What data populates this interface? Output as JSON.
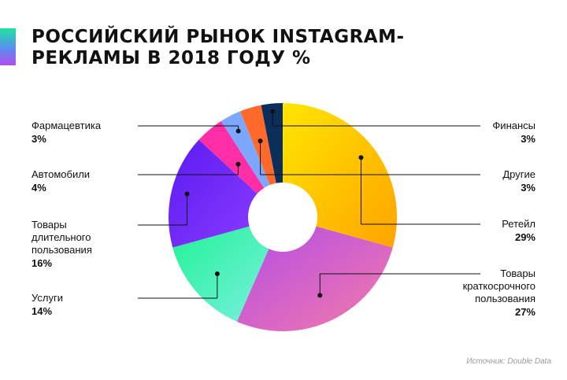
{
  "title_lines": [
    "РОССИЙСКИЙ РЫНОК INSTAGRAM-",
    "РЕКЛАМЫ В 2018 ГОДУ %"
  ],
  "source": "Источник: Double Data",
  "chart_data": {
    "type": "pie",
    "donut": true,
    "title": "РОССИЙСКИЙ РЫНОК INSTAGRAM-РЕКЛАМЫ В 2018 ГОДУ %",
    "slices": [
      {
        "label": "Ретейл",
        "value": 29,
        "display": "29%",
        "colors": [
          "#ffe600",
          "#ffa300"
        ]
      },
      {
        "label": "Товары краткосрочного пользования",
        "value": 27,
        "display": "27%",
        "colors": [
          "#b44ce8",
          "#f47ba8"
        ]
      },
      {
        "label": "Услуги",
        "value": 14,
        "display": "14%",
        "colors": [
          "#22f295",
          "#7af0e0"
        ]
      },
      {
        "label": "Товары длительного пользования",
        "value": 16,
        "display": "16%",
        "colors": [
          "#5a1bf0",
          "#8a3bff"
        ]
      },
      {
        "label": "Автомобили",
        "value": 4,
        "display": "4%",
        "colors": [
          "#ff2ea6",
          "#ff2ea6"
        ]
      },
      {
        "label": "Фармацевтика",
        "value": 3,
        "display": "3%",
        "colors": [
          "#7da6ff",
          "#7da6ff"
        ]
      },
      {
        "label": "Другие",
        "value": 3,
        "display": "3%",
        "colors": [
          "#ff6a2a",
          "#ff6a2a"
        ]
      },
      {
        "label": "Финансы",
        "value": 3,
        "display": "3%",
        "colors": [
          "#0b2f5a",
          "#0b2f5a"
        ]
      }
    ]
  },
  "labels": {
    "retail": {
      "lines": [
        "Ретейл"
      ],
      "pct": "29%"
    },
    "short": {
      "lines": [
        "Товары",
        "краткосрочного",
        "пользования"
      ],
      "pct": "27%"
    },
    "services": {
      "lines": [
        "Услуги"
      ],
      "pct": "14%"
    },
    "durable": {
      "lines": [
        "Товары",
        "длительного",
        "пользования"
      ],
      "pct": "16%"
    },
    "auto": {
      "lines": [
        "Автомобили"
      ],
      "pct": "4%"
    },
    "pharma": {
      "lines": [
        "Фармацевтика"
      ],
      "pct": "3%"
    },
    "other": {
      "lines": [
        "Другие"
      ],
      "pct": "3%"
    },
    "finance": {
      "lines": [
        "Финансы"
      ],
      "pct": "3%"
    }
  }
}
